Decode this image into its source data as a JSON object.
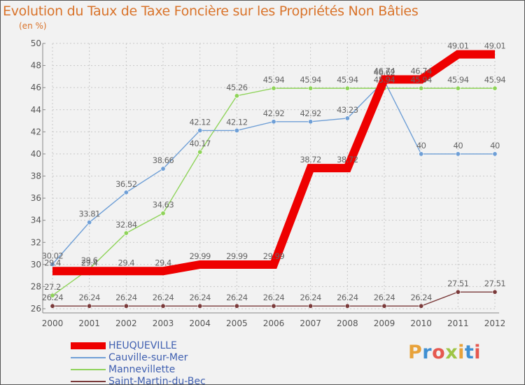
{
  "title": "Evolution du Taux de Taxe Foncière sur les Propriétés Non Bâties",
  "subtitle": "(en %)",
  "chart_data": {
    "type": "line",
    "title": "Evolution du Taux de Taxe Foncière sur les Propriétés Non Bâties",
    "ylabel": "(en %)",
    "xlabel": "",
    "x": [
      "2000",
      "2001",
      "2002",
      "2003",
      "2004",
      "2005",
      "2006",
      "2007",
      "2008",
      "2009",
      "2010",
      "2011",
      "2012"
    ],
    "ylim": [
      26,
      50
    ],
    "yticks": [
      "26",
      "28",
      "30",
      "32",
      "34",
      "36",
      "38",
      "40",
      "42",
      "44",
      "46",
      "48",
      "50"
    ],
    "grid": true,
    "legend_position": "bottom-left",
    "series": [
      {
        "name": "HEUQUEVILLE",
        "color": "#ee0000",
        "values": [
          29.4,
          29.4,
          29.4,
          29.4,
          29.99,
          29.99,
          29.99,
          38.72,
          38.72,
          46.74,
          46.74,
          49.01,
          49.01
        ],
        "labels": [
          "29.4",
          "29.4",
          "29.4",
          "29.4",
          "29.99",
          "29.99",
          "29.99",
          "38.72",
          "38.72",
          "46.74",
          "46.74",
          "49.01",
          "49.01"
        ]
      },
      {
        "name": "Cauville-sur-Mer",
        "color": "#6f9fd6",
        "values": [
          30.02,
          33.81,
          36.52,
          38.66,
          42.12,
          42.12,
          42.92,
          42.92,
          43.23,
          46.62,
          40,
          40,
          40
        ],
        "labels": [
          "30.02",
          "33.81",
          "36.52",
          "38.66",
          "42.12",
          "42.12",
          "42.92",
          "42.92",
          "43.23",
          "46.62",
          "40",
          "40",
          "40"
        ]
      },
      {
        "name": "Mannevillette",
        "color": "#8fd35a",
        "values": [
          27.2,
          29.6,
          32.84,
          34.63,
          40.17,
          45.26,
          45.94,
          45.94,
          45.94,
          45.94,
          45.94,
          45.94,
          45.94
        ],
        "labels": [
          "27.2",
          "29.6",
          "32.84",
          "34.63",
          "40.17",
          "45.26",
          "45.94",
          "45.94",
          "45.94",
          "45.94",
          "45.94",
          "45.94",
          "45.94"
        ]
      },
      {
        "name": "Saint-Martin-du-Bec",
        "color": "#7a3a3a",
        "values": [
          26.24,
          26.24,
          26.24,
          26.24,
          26.24,
          26.24,
          26.24,
          26.24,
          26.24,
          26.24,
          26.24,
          27.51,
          27.51
        ],
        "labels": [
          "26.24",
          "26.24",
          "26.24",
          "26.24",
          "26.24",
          "26.24",
          "26.24",
          "26.24",
          "26.24",
          "26.24",
          "26.24",
          "27.51",
          "27.51"
        ]
      }
    ]
  },
  "logo": {
    "letters": [
      "P",
      "r",
      "o",
      "x",
      "i",
      "t",
      "i"
    ],
    "colors": [
      "#e8a23a",
      "#3f8fd2",
      "#e5584f",
      "#9ec545",
      "#e8a23a",
      "#3f8fd2",
      "#e5584f"
    ]
  }
}
